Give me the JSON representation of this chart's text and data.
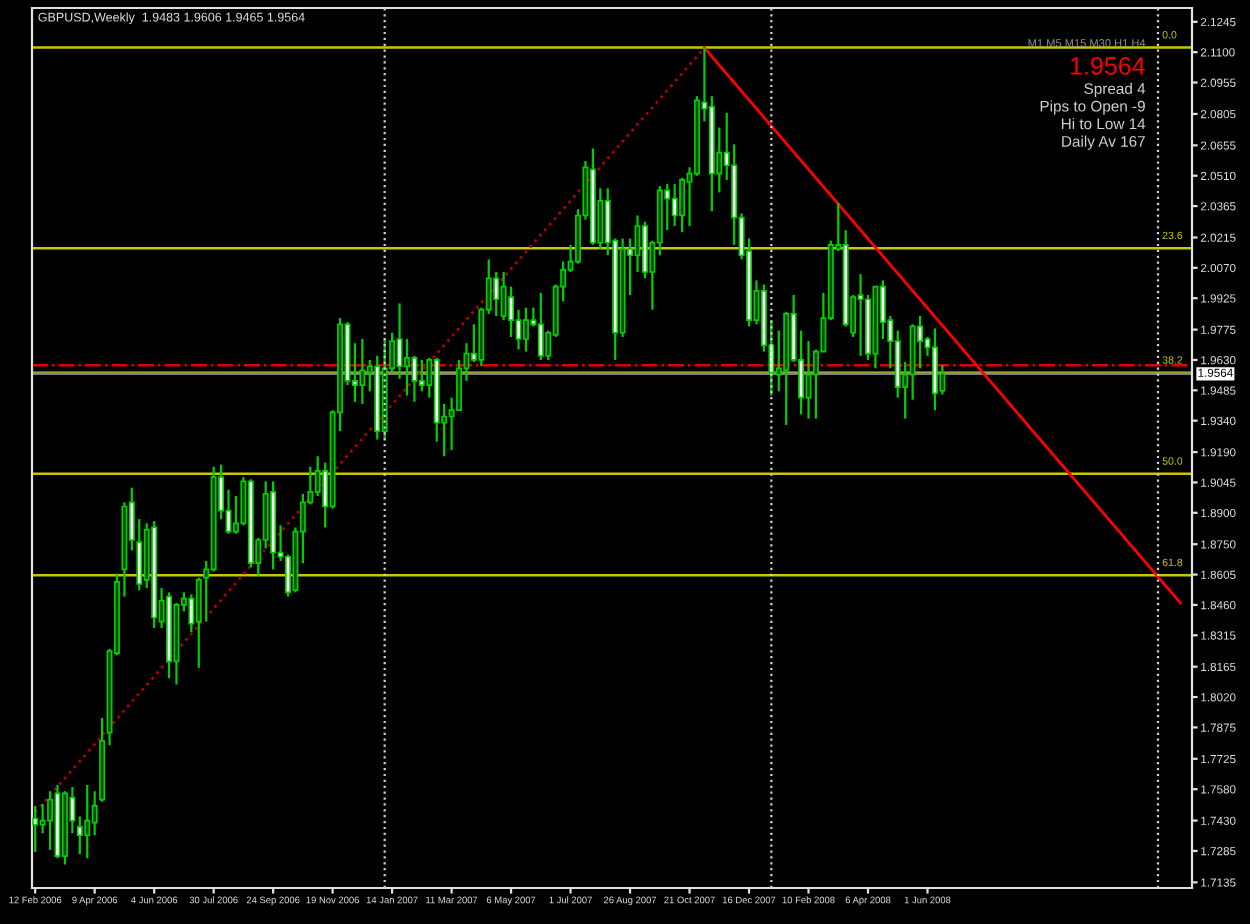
{
  "chart_data": {
    "type": "candlestick",
    "title": "GBPUSD,Weekly  1.9483 1.9606 1.9465 1.9564",
    "x": [
      "2006-02-12",
      "2006-02-19",
      "2006-02-26",
      "2006-03-05",
      "2006-03-12",
      "2006-03-19",
      "2006-03-26",
      "2006-04-02",
      "2006-04-09",
      "2006-04-16",
      "2006-04-23",
      "2006-04-30",
      "2006-05-07",
      "2006-05-14",
      "2006-05-21",
      "2006-05-28",
      "2006-06-04",
      "2006-06-11",
      "2006-06-18",
      "2006-06-25",
      "2006-07-02",
      "2006-07-09",
      "2006-07-16",
      "2006-07-23",
      "2006-07-30",
      "2006-08-06",
      "2006-08-13",
      "2006-08-20",
      "2006-08-27",
      "2006-09-03",
      "2006-09-10",
      "2006-09-17",
      "2006-09-24",
      "2006-10-01",
      "2006-10-08",
      "2006-10-15",
      "2006-10-22",
      "2006-10-29",
      "2006-11-05",
      "2006-11-12",
      "2006-11-19",
      "2006-11-26",
      "2006-12-03",
      "2006-12-10",
      "2006-12-17",
      "2006-12-24",
      "2006-12-31",
      "2007-01-07",
      "2007-01-14",
      "2007-01-21",
      "2007-01-28",
      "2007-02-04",
      "2007-02-11",
      "2007-02-18",
      "2007-02-25",
      "2007-03-04",
      "2007-03-11",
      "2007-03-18",
      "2007-03-25",
      "2007-04-01",
      "2007-04-08",
      "2007-04-15",
      "2007-04-22",
      "2007-04-29",
      "2007-05-06",
      "2007-05-13",
      "2007-05-20",
      "2007-05-27",
      "2007-06-03",
      "2007-06-10",
      "2007-06-17",
      "2007-06-24",
      "2007-07-01",
      "2007-07-08",
      "2007-07-15",
      "2007-07-22",
      "2007-07-29",
      "2007-08-05",
      "2007-08-12",
      "2007-08-19",
      "2007-08-26",
      "2007-09-02",
      "2007-09-09",
      "2007-09-16",
      "2007-09-23",
      "2007-09-30",
      "2007-10-07",
      "2007-10-14",
      "2007-10-21",
      "2007-10-28",
      "2007-11-04",
      "2007-11-11",
      "2007-11-18",
      "2007-11-25",
      "2007-12-02",
      "2007-12-09",
      "2007-12-16",
      "2007-12-23",
      "2007-12-30",
      "2008-01-06",
      "2008-01-13",
      "2008-01-20",
      "2008-01-27",
      "2008-02-03",
      "2008-02-10",
      "2008-02-17",
      "2008-02-24",
      "2008-03-02",
      "2008-03-09",
      "2008-03-16",
      "2008-03-23",
      "2008-03-30",
      "2008-04-06",
      "2008-04-13",
      "2008-04-20",
      "2008-04-27",
      "2008-05-04",
      "2008-05-11",
      "2008-05-18",
      "2008-05-25",
      "2008-06-01",
      "2008-06-08",
      "2008-06-15"
    ],
    "ohlc": [
      [
        1.744,
        1.75,
        1.728,
        1.741
      ],
      [
        1.741,
        1.751,
        1.737,
        1.743
      ],
      [
        1.743,
        1.757,
        1.729,
        1.753
      ],
      [
        1.756,
        1.76,
        1.725,
        1.726
      ],
      [
        1.726,
        1.757,
        1.722,
        1.756
      ],
      [
        1.754,
        1.759,
        1.737,
        1.743
      ],
      [
        1.74,
        1.745,
        1.727,
        1.736
      ],
      [
        1.736,
        1.76,
        1.725,
        1.743
      ],
      [
        1.742,
        1.757,
        1.736,
        1.75
      ],
      [
        1.753,
        1.792,
        1.752,
        1.781
      ],
      [
        1.785,
        1.825,
        1.779,
        1.824
      ],
      [
        1.823,
        1.861,
        1.822,
        1.857
      ],
      [
        1.863,
        1.895,
        1.85,
        1.893
      ],
      [
        1.895,
        1.902,
        1.872,
        1.877
      ],
      [
        1.876,
        1.887,
        1.853,
        1.856
      ],
      [
        1.858,
        1.885,
        1.854,
        1.882
      ],
      [
        1.883,
        1.886,
        1.835,
        1.84
      ],
      [
        1.838,
        1.854,
        1.835,
        1.848
      ],
      [
        1.85,
        1.852,
        1.811,
        1.819
      ],
      [
        1.819,
        1.847,
        1.808,
        1.846
      ],
      [
        1.846,
        1.852,
        1.843,
        1.849
      ],
      [
        1.849,
        1.851,
        1.833,
        1.837
      ],
      [
        1.838,
        1.859,
        1.816,
        1.858
      ],
      [
        1.859,
        1.867,
        1.838,
        1.863
      ],
      [
        1.863,
        1.912,
        1.862,
        1.907
      ],
      [
        1.907,
        1.913,
        1.887,
        1.891
      ],
      [
        1.891,
        1.901,
        1.88,
        1.881
      ],
      [
        1.881,
        1.898,
        1.88,
        1.885
      ],
      [
        1.885,
        1.907,
        1.884,
        1.905
      ],
      [
        1.905,
        1.906,
        1.864,
        1.866
      ],
      [
        1.866,
        1.878,
        1.86,
        1.877
      ],
      [
        1.877,
        1.905,
        1.873,
        1.899
      ],
      [
        1.9,
        1.905,
        1.863,
        1.871
      ],
      [
        1.871,
        1.884,
        1.867,
        1.869
      ],
      [
        1.869,
        1.87,
        1.85,
        1.852
      ],
      [
        1.853,
        1.883,
        1.852,
        1.881
      ],
      [
        1.881,
        1.899,
        1.866,
        1.895
      ],
      [
        1.895,
        1.912,
        1.894,
        1.9
      ],
      [
        1.9,
        1.917,
        1.898,
        1.91
      ],
      [
        1.91,
        1.914,
        1.883,
        1.893
      ],
      [
        1.893,
        1.939,
        1.892,
        1.938
      ],
      [
        1.938,
        1.983,
        1.929,
        1.98
      ],
      [
        1.98,
        1.981,
        1.951,
        1.953
      ],
      [
        1.953,
        1.971,
        1.943,
        1.951
      ],
      [
        1.951,
        1.973,
        1.942,
        1.958
      ],
      [
        1.957,
        1.963,
        1.948,
        1.96
      ],
      [
        1.96,
        1.965,
        1.925,
        1.929
      ],
      [
        1.929,
        1.973,
        1.925,
        1.959
      ],
      [
        1.959,
        1.976,
        1.957,
        1.972
      ],
      [
        1.973,
        1.99,
        1.954,
        1.96
      ],
      [
        1.96,
        1.973,
        1.946,
        1.964
      ],
      [
        1.964,
        1.965,
        1.943,
        1.953
      ],
      [
        1.953,
        1.963,
        1.948,
        1.951
      ],
      [
        1.951,
        1.964,
        1.945,
        1.963
      ],
      [
        1.963,
        1.964,
        1.924,
        1.933
      ],
      [
        1.933,
        1.942,
        1.917,
        1.936
      ],
      [
        1.936,
        1.945,
        1.92,
        1.939
      ],
      [
        1.939,
        1.963,
        1.939,
        1.959
      ],
      [
        1.959,
        1.971,
        1.953,
        1.966
      ],
      [
        1.966,
        1.98,
        1.962,
        1.963
      ],
      [
        1.963,
        1.988,
        1.96,
        1.987
      ],
      [
        1.987,
        2.011,
        1.985,
        2.002
      ],
      [
        2.002,
        2.005,
        1.984,
        1.992
      ],
      [
        1.984,
        2.005,
        1.982,
        1.998
      ],
      [
        1.993,
        1.998,
        1.974,
        1.982
      ],
      [
        1.982,
        1.987,
        1.968,
        1.973
      ],
      [
        1.973,
        1.988,
        1.967,
        1.982
      ],
      [
        1.982,
        1.988,
        1.979,
        1.98
      ],
      [
        1.98,
        1.995,
        1.963,
        1.965
      ],
      [
        1.965,
        1.977,
        1.963,
        1.976
      ],
      [
        1.975,
        1.999,
        1.974,
        1.998
      ],
      [
        1.998,
        2.01,
        1.991,
        2.006
      ],
      [
        2.006,
        2.018,
        2.005,
        2.01
      ],
      [
        2.01,
        2.035,
        2.009,
        2.032
      ],
      [
        2.032,
        2.058,
        2.03,
        2.055
      ],
      [
        2.054,
        2.064,
        2.018,
        2.019
      ],
      [
        2.019,
        2.045,
        2.016,
        2.039
      ],
      [
        2.039,
        2.045,
        2.013,
        2.019
      ],
      [
        2.02,
        2.021,
        1.963,
        1.976
      ],
      [
        1.976,
        2.021,
        1.974,
        2.016
      ],
      [
        2.016,
        2.021,
        1.994,
        2.013
      ],
      [
        2.013,
        2.032,
        2.005,
        2.027
      ],
      [
        2.027,
        2.029,
        2.002,
        2.005
      ],
      [
        2.005,
        2.02,
        1.987,
        2.019
      ],
      [
        2.019,
        2.046,
        2.013,
        2.044
      ],
      [
        2.044,
        2.047,
        2.025,
        2.04
      ],
      [
        2.04,
        2.047,
        2.027,
        2.032
      ],
      [
        2.032,
        2.05,
        2.024,
        2.049
      ],
      [
        2.048,
        2.055,
        2.027,
        2.052
      ],
      [
        2.052,
        2.089,
        2.051,
        2.087
      ],
      [
        2.086,
        2.112,
        2.077,
        2.083
      ],
      [
        2.084,
        2.089,
        2.034,
        2.052
      ],
      [
        2.052,
        2.074,
        2.043,
        2.062
      ],
      [
        2.062,
        2.081,
        2.049,
        2.056
      ],
      [
        2.056,
        2.066,
        2.018,
        2.031
      ],
      [
        2.031,
        2.033,
        2.011,
        2.013
      ],
      [
        2.015,
        2.021,
        1.979,
        1.982
      ],
      [
        1.982,
        2.001,
        1.98,
        1.996
      ],
      [
        1.996,
        1.999,
        1.967,
        1.97
      ],
      [
        1.97,
        1.982,
        1.946,
        1.957
      ],
      [
        1.956,
        1.977,
        1.948,
        1.959
      ],
      [
        1.958,
        1.986,
        1.932,
        1.985
      ],
      [
        1.985,
        1.994,
        1.962,
        1.963
      ],
      [
        1.963,
        1.977,
        1.937,
        1.945
      ],
      [
        1.945,
        1.972,
        1.935,
        1.956
      ],
      [
        1.956,
        1.968,
        1.935,
        1.967
      ],
      [
        1.967,
        1.995,
        1.967,
        1.983
      ],
      [
        1.983,
        2.02,
        1.982,
        2.018
      ],
      [
        2.016,
        2.038,
        2.015,
        2.018
      ],
      [
        2.018,
        2.025,
        1.979,
        1.98
      ],
      [
        1.976,
        1.994,
        1.974,
        1.993
      ],
      [
        1.994,
        2.004,
        1.965,
        1.992
      ],
      [
        1.992,
        1.994,
        1.963,
        1.966
      ],
      [
        1.966,
        1.998,
        1.959,
        1.998
      ],
      [
        1.998,
        2.001,
        1.973,
        1.981
      ],
      [
        1.982,
        1.984,
        1.959,
        1.972
      ],
      [
        1.972,
        1.977,
        1.945,
        1.95
      ],
      [
        1.95,
        1.962,
        1.935,
        1.956
      ],
      [
        1.956,
        1.98,
        1.944,
        1.979
      ],
      [
        1.979,
        1.984,
        1.959,
        1.972
      ],
      [
        1.973,
        1.974,
        1.965,
        1.969
      ],
      [
        1.969,
        1.978,
        1.939,
        1.947
      ],
      [
        1.9483,
        1.9606,
        1.9465,
        1.9564
      ]
    ],
    "series": [
      {
        "type": "line",
        "x": [
          "2006-02-12",
          "2007-11-04"
        ],
        "values": [
          1.747,
          2.112
        ],
        "color": "#b00000",
        "line_style": "dotted"
      },
      {
        "type": "line",
        "x": [
          "2007-11-04",
          "2009-01-25"
        ],
        "values": [
          2.112,
          1.847
        ],
        "color": "#ff0000",
        "line_style": "solid"
      }
    ],
    "ylim": [
      1.7108,
      2.1311
    ],
    "yticks": [
      {
        "value": 2.1245,
        "label": "2.1245"
      },
      {
        "value": 2.11,
        "label": "2.1100"
      },
      {
        "value": 2.0955,
        "label": "2.0955"
      },
      {
        "value": 2.0805,
        "label": "2.0805"
      },
      {
        "value": 2.0655,
        "label": "2.0655"
      },
      {
        "value": 2.051,
        "label": "2.0510"
      },
      {
        "value": 2.0365,
        "label": "2.0365"
      },
      {
        "value": 2.0215,
        "label": "2.0215"
      },
      {
        "value": 2.007,
        "label": "2.0070"
      },
      {
        "value": 1.9925,
        "label": "1.9925"
      },
      {
        "value": 1.9775,
        "label": "1.9775"
      },
      {
        "value": 1.963,
        "label": "1.9630"
      },
      {
        "value": 1.9485,
        "label": "1.9485"
      },
      {
        "value": 1.934,
        "label": "1.9340"
      },
      {
        "value": 1.919,
        "label": "1.9190"
      },
      {
        "value": 1.9045,
        "label": "1.9045"
      },
      {
        "value": 1.89,
        "label": "1.8900"
      },
      {
        "value": 1.875,
        "label": "1.8750"
      },
      {
        "value": 1.8605,
        "label": "1.8605"
      },
      {
        "value": 1.846,
        "label": "1.8460"
      },
      {
        "value": 1.8315,
        "label": "1.8315"
      },
      {
        "value": 1.8165,
        "label": "1.8165"
      },
      {
        "value": 1.802,
        "label": "1.8020"
      },
      {
        "value": 1.7875,
        "label": "1.7875"
      },
      {
        "value": 1.7725,
        "label": "1.7725"
      },
      {
        "value": 1.758,
        "label": "1.7580"
      },
      {
        "value": 1.743,
        "label": "1.7430"
      },
      {
        "value": 1.7285,
        "label": "1.7285"
      },
      {
        "value": 1.7135,
        "label": "1.7135"
      }
    ],
    "xlim": [
      "2006-02-09",
      "2009-02-05"
    ],
    "xticks": [
      {
        "value": "2006-02-12",
        "label": "12 Feb 2006"
      },
      {
        "value": "2006-04-09",
        "label": "9 Apr 2006"
      },
      {
        "value": "2006-06-04",
        "label": "4 Jun 2006"
      },
      {
        "value": "2006-07-30",
        "label": "30 Jul 2006"
      },
      {
        "value": "2006-09-24",
        "label": "24 Sep 2006"
      },
      {
        "value": "2006-11-19",
        "label": "19 Nov 2006"
      },
      {
        "value": "2007-01-14",
        "label": "14 Jan 2007"
      },
      {
        "value": "2007-03-11",
        "label": "11 Mar 2007"
      },
      {
        "value": "2007-05-06",
        "label": "6 May 2007"
      },
      {
        "value": "2007-07-01",
        "label": "1 Jul 2007"
      },
      {
        "value": "2007-08-26",
        "label": "26 Aug 2007"
      },
      {
        "value": "2007-10-21",
        "label": "21 Oct 2007"
      },
      {
        "value": "2007-12-16",
        "label": "16 Dec 2007"
      },
      {
        "value": "2008-02-10",
        "label": "10 Feb 2008"
      },
      {
        "value": "2008-04-06",
        "label": "6 Apr 2008"
      },
      {
        "value": "2008-06-01",
        "label": "1 Jun 2008"
      }
    ],
    "ref_lines": [
      {
        "axis": "y",
        "value": 2.1122,
        "color": "#c8c800",
        "line_style": "solid"
      },
      {
        "axis": "y",
        "value": 2.0164,
        "color": "#c8c800",
        "line_style": "solid"
      },
      {
        "axis": "y",
        "value": 1.9569,
        "color": "#c8c800",
        "line_style": "solid"
      },
      {
        "axis": "y",
        "value": 1.9086,
        "color": "#c8c800",
        "line_style": "solid"
      },
      {
        "axis": "y",
        "value": 1.8602,
        "color": "#c8c800",
        "line_style": "solid"
      },
      {
        "axis": "y",
        "value": 1.9605,
        "color": "#e00000",
        "line_style": "dashdot"
      },
      {
        "axis": "y",
        "value": 1.9564,
        "label": "1.9564",
        "color": "#808080",
        "line_style": "solid"
      },
      {
        "axis": "x",
        "value": "2007-01-07",
        "color": "#d0d0d0",
        "line_style": "dotted"
      },
      {
        "axis": "x",
        "value": "2008-01-06",
        "color": "#d0d0d0",
        "line_style": "dotted"
      },
      {
        "axis": "x",
        "value": "2009-01-04",
        "color": "#d0d0d0",
        "line_style": "dotted"
      }
    ],
    "annotations": [
      {
        "text": "0.0",
        "x": "2009-01-04",
        "y": 2.1122
      },
      {
        "text": "23.6",
        "x": "2009-01-04",
        "y": 2.0164
      },
      {
        "text": "38.2",
        "x": "2009-01-04",
        "y": 1.9569
      },
      {
        "text": "50.0",
        "x": "2009-01-04",
        "y": 1.9086
      },
      {
        "text": "61.8",
        "x": "2009-01-04",
        "y": 1.8602
      },
      "M1 M5 M15 M30 H1 H4",
      "1.9564",
      "Spread 4",
      "Pips to Open -9",
      "Hi to Low 14",
      "Daily Av 167"
    ],
    "grid": false,
    "legend": false
  }
}
